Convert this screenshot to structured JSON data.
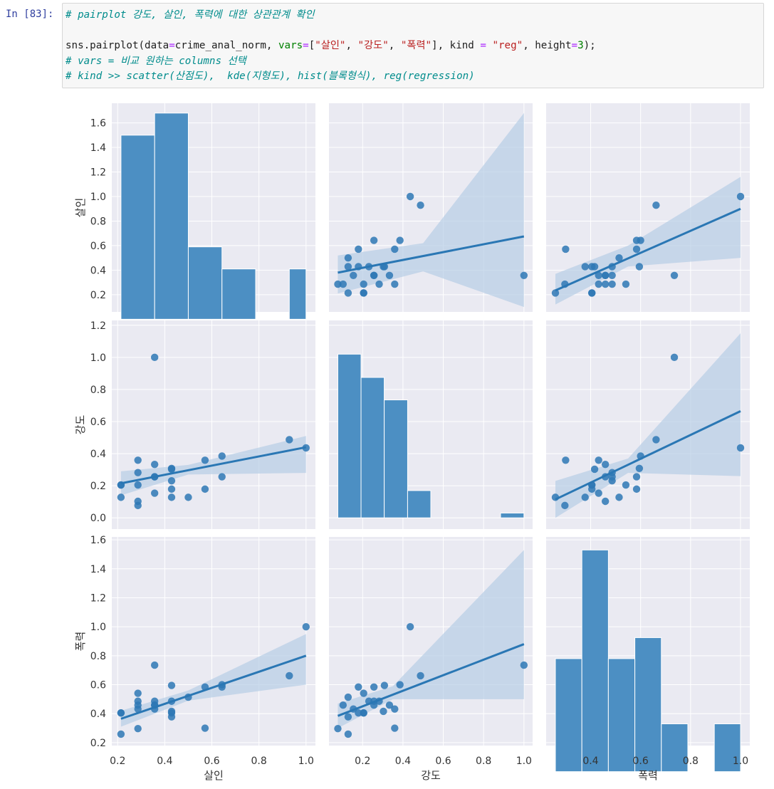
{
  "cell": {
    "prompt": "In [83]:",
    "comment1": "# pairplot 강도, 살인, 폭력에 대한 상관관계 확인",
    "code": {
      "fn": "sns.pairplot(data",
      "eq1": "=",
      "data_arg": "crime_anal_norm, ",
      "vars_kw": "vars",
      "eq2": "=",
      "list_open": "[",
      "v1": "\"살인\"",
      "sep1": ", ",
      "v2": "\"강도\"",
      "sep2": ", ",
      "v3": "\"폭력\"",
      "list_close": "], kind ",
      "eq3": "=",
      "kind_val": " \"reg\"",
      "height_kw": ", height",
      "eq4": "=",
      "height_val": "3",
      "end": ");"
    },
    "comment2": "# vars = 비교 원하는 columns 선택",
    "comment3": "# kind >> scatter(산점도),  kde(지형도), hist(블록형식), reg(regression)"
  },
  "colors": {
    "panel_bg": "#eaeaf2",
    "grid": "#ffffff",
    "bar": "#4c8fc3",
    "point": "#2e78b5",
    "line": "#2a77b4",
    "ci_band": "#b7cde6"
  },
  "chart_data": {
    "type": "scatter",
    "variables": [
      "살인",
      "강도",
      "폭력"
    ],
    "row_labels": [
      "살인",
      "강도",
      "폭력"
    ],
    "col_labels": [
      "살인",
      "강도",
      "폭력"
    ],
    "grid": true,
    "points": {
      "살인": [
        0.214,
        0.286,
        0.286,
        0.286,
        0.214,
        0.286,
        0.357,
        0.357,
        0.357,
        0.429,
        0.429,
        0.429,
        0.429,
        0.5,
        0.571,
        0.571,
        0.643,
        0.643,
        0.357,
        0.929,
        1.0,
        0.429,
        0.214,
        0.286,
        0.357
      ],
      "강도": [
        0.205,
        0.077,
        0.103,
        0.282,
        0.128,
        0.205,
        0.154,
        0.256,
        0.333,
        0.179,
        0.128,
        0.231,
        0.308,
        0.128,
        0.359,
        0.179,
        0.385,
        0.256,
        1.0,
        0.487,
        0.436,
        0.303,
        0.205,
        0.359,
        0.256
      ],
      "폭력": [
        0.405,
        0.297,
        0.459,
        0.486,
        0.259,
        0.541,
        0.432,
        0.486,
        0.459,
        0.405,
        0.378,
        0.486,
        0.595,
        0.514,
        0.3,
        0.584,
        0.6,
        0.584,
        0.735,
        0.662,
        1.0,
        0.416,
        0.405,
        0.432,
        0.459
      ]
    },
    "histograms": [
      {
        "variable": "살인",
        "bin_edges": [
          0.214,
          0.357,
          0.5,
          0.643,
          0.786,
          0.929,
          1.0
        ],
        "values": [
          1.5,
          1.68,
          0.59,
          0.41,
          0,
          0.41
        ]
      },
      {
        "variable": "강도",
        "bin_edges": [
          0.077,
          0.192,
          0.307,
          0.423,
          0.538,
          0.884,
          1.0
        ],
        "values": [
          1.02,
          0.875,
          0.735,
          0.17,
          0,
          0.03
        ]
      },
      {
        "variable": "폭력",
        "bin_edges": [
          0.259,
          0.365,
          0.471,
          0.577,
          0.683,
          0.789,
          0.895,
          1.0
        ],
        "values": [
          0.78,
          1.53,
          0.78,
          0.925,
          0.33,
          0,
          0.33
        ]
      }
    ],
    "regression": [
      {
        "row": "살인",
        "col": "강도",
        "line": [
          [
            0.077,
            0.38
          ],
          [
            1.0,
            0.675
          ]
        ],
        "ci_lower": [
          [
            0.077,
            0.21
          ],
          [
            0.5,
            0.39
          ],
          [
            1.0,
            0.1
          ]
        ],
        "ci_upper": [
          [
            0.077,
            0.52
          ],
          [
            0.5,
            0.62
          ],
          [
            1.0,
            1.68
          ]
        ]
      },
      {
        "row": "살인",
        "col": "폭력",
        "line": [
          [
            0.259,
            0.235
          ],
          [
            1.0,
            0.9
          ]
        ],
        "ci_lower": [
          [
            0.259,
            0.12
          ],
          [
            0.55,
            0.43
          ],
          [
            1.0,
            0.5
          ]
        ],
        "ci_upper": [
          [
            0.259,
            0.37
          ],
          [
            0.55,
            0.6
          ],
          [
            1.0,
            1.16
          ]
        ]
      },
      {
        "row": "강도",
        "col": "살인",
        "line": [
          [
            0.214,
            0.215
          ],
          [
            1.0,
            0.44
          ]
        ],
        "ci_lower": [
          [
            0.214,
            0.14
          ],
          [
            0.5,
            0.27
          ],
          [
            1.0,
            0.28
          ]
        ],
        "ci_upper": [
          [
            0.214,
            0.29
          ],
          [
            0.5,
            0.33
          ],
          [
            1.0,
            0.51
          ]
        ]
      },
      {
        "row": "강도",
        "col": "폭력",
        "line": [
          [
            0.259,
            0.115
          ],
          [
            1.0,
            0.665
          ]
        ],
        "ci_lower": [
          [
            0.259,
            0.0
          ],
          [
            0.55,
            0.28
          ],
          [
            1.0,
            0.26
          ]
        ],
        "ci_upper": [
          [
            0.259,
            0.23
          ],
          [
            0.55,
            0.37
          ],
          [
            1.0,
            1.15
          ]
        ]
      },
      {
        "row": "폭력",
        "col": "살인",
        "line": [
          [
            0.214,
            0.365
          ],
          [
            1.0,
            0.8
          ]
        ],
        "ci_lower": [
          [
            0.214,
            0.31
          ],
          [
            0.5,
            0.49
          ],
          [
            1.0,
            0.6
          ]
        ],
        "ci_upper": [
          [
            0.214,
            0.42
          ],
          [
            0.5,
            0.56
          ],
          [
            1.0,
            0.95
          ]
        ]
      },
      {
        "row": "폭력",
        "col": "강도",
        "line": [
          [
            0.077,
            0.385
          ],
          [
            1.0,
            0.88
          ]
        ],
        "ci_lower": [
          [
            0.077,
            0.3
          ],
          [
            0.35,
            0.5
          ],
          [
            1.0,
            0.5
          ]
        ],
        "ci_upper": [
          [
            0.077,
            0.47
          ],
          [
            0.35,
            0.59
          ],
          [
            1.0,
            1.53
          ]
        ]
      }
    ],
    "x_ticks": {
      "살인": [
        "0.2",
        "0.4",
        "0.6",
        "0.8",
        "1.0"
      ],
      "강도": [
        "0.0",
        "0.2",
        "0.4",
        "0.6",
        "0.8",
        "1.0"
      ],
      "폭력": [
        "0.4",
        "0.6",
        "0.8",
        "1.0"
      ]
    },
    "y_ticks": {
      "살인": [
        "0.2",
        "0.4",
        "0.6",
        "0.8",
        "1.0",
        "1.2",
        "1.4",
        "1.6"
      ],
      "강도": [
        "0.0",
        "0.2",
        "0.4",
        "0.6",
        "0.8",
        "1.0",
        "1.2"
      ],
      "폭력": [
        "0.2",
        "0.4",
        "0.6",
        "0.8",
        "1.0",
        "1.2",
        "1.4",
        "1.6"
      ]
    },
    "xlim": {
      "살인": [
        0.175,
        1.04
      ],
      "강도": [
        0.033,
        1.043
      ],
      "폭력": [
        0.222,
        1.037
      ]
    },
    "ylim": {
      "살인": [
        0.06,
        1.76
      ],
      "강도": [
        -0.07,
        1.23
      ],
      "폭력": [
        0.18,
        1.62
      ]
    }
  }
}
